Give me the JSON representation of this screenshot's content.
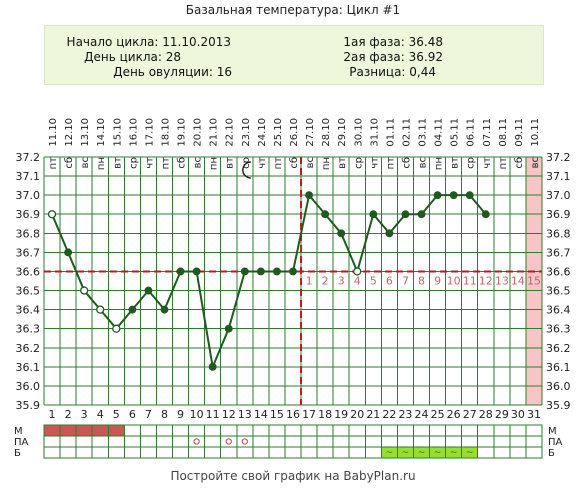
{
  "title": "Базальная температура: Цикл #1",
  "info": {
    "cycle_start": "Начало цикла: 11.10.2013",
    "cycle_day": "День цикла: 28",
    "ovulation_day": "День овуляции: 16",
    "phase1": "1ая фаза: 36.48",
    "phase2": "2ая фаза: 36.92",
    "difference": "Разница: 0,44"
  },
  "footer": "Постройте свой график на BabyPlan.ru",
  "moon_icon": "crescent-moon-icon",
  "colors": {
    "line": "#1f5a1f",
    "grid": "#2e7d2e",
    "cover_line": "#c01818",
    "ovulation_line": "#c01818",
    "highlight_column": "#f7c5c5",
    "menstruation": "#cc5555",
    "mucus_box": "#99dd33",
    "phase2_numbers": "#c06868"
  },
  "chart_data": {
    "type": "line",
    "title": "Базальная температура: Цикл #1",
    "ylim": [
      35.9,
      37.2
    ],
    "yticks": [
      "37.2",
      "37.1",
      "37.0",
      "36.9",
      "36.8",
      "36.7",
      "36.6",
      "36.5",
      "36.4",
      "36.3",
      "36.2",
      "36.1",
      "36.0",
      "35.9"
    ],
    "days": [
      "1",
      "2",
      "3",
      "4",
      "5",
      "6",
      "7",
      "8",
      "9",
      "10",
      "11",
      "12",
      "13",
      "14",
      "15",
      "16",
      "17",
      "18",
      "19",
      "20",
      "21",
      "22",
      "23",
      "24",
      "25",
      "26",
      "27",
      "28",
      "29",
      "30",
      "31"
    ],
    "weekdays": [
      "пт",
      "сб",
      "вс",
      "пн",
      "вт",
      "ср",
      "чт",
      "пт",
      "сб",
      "вс",
      "пн",
      "вт",
      "ср",
      "чт",
      "пт",
      "сб",
      "вс",
      "пн",
      "вт",
      "ср",
      "чт",
      "пт",
      "сб",
      "вс",
      "пн",
      "вт",
      "ср",
      "чт",
      "пт",
      "сб",
      "вс"
    ],
    "dates": [
      "11.10",
      "12.10",
      "13.10",
      "14.10",
      "15.10",
      "16.10",
      "17.10",
      "18.10",
      "19.10",
      "20.10",
      "21.10",
      "22.10",
      "23.10",
      "24.10",
      "25.10",
      "26.10",
      "27.10",
      "28.10",
      "29.10",
      "30.10",
      "31.10",
      "01.11",
      "02.11",
      "03.11",
      "04.11",
      "05.11",
      "06.11",
      "07.11",
      "08.11",
      "09.11",
      "10.11"
    ],
    "series": [
      {
        "values": [
          36.9,
          36.7,
          36.5,
          36.4,
          36.3,
          36.4,
          36.5,
          36.4,
          36.6,
          36.6,
          36.1,
          36.3,
          36.6,
          36.6,
          36.6,
          36.6,
          37.0,
          36.9,
          36.8,
          36.6,
          36.9,
          36.8,
          36.9,
          36.9,
          37.0,
          37.0,
          37.0,
          36.9,
          null,
          null,
          null
        ],
        "hollow": [
          true,
          false,
          true,
          true,
          true,
          false,
          false,
          false,
          false,
          false,
          false,
          false,
          false,
          false,
          false,
          false,
          false,
          false,
          false,
          true,
          false,
          false,
          false,
          false,
          false,
          false,
          false,
          false,
          false,
          false,
          false
        ]
      }
    ],
    "cover_line": 36.6,
    "ovulation_day": 16,
    "moon_day": 13,
    "highlight_day": 31,
    "phase2_numbers": [
      "1",
      "2",
      "3",
      "4",
      "5",
      "6",
      "7",
      "8",
      "9",
      "10",
      "11",
      "12",
      "13",
      "14",
      "15"
    ],
    "rows": {
      "labels": [
        "М",
        "ПА",
        "Б"
      ],
      "menstruation_days": [
        1,
        2,
        3,
        4,
        5
      ],
      "pa_circle_days": [
        10,
        12,
        13
      ],
      "mucus_days": [
        22,
        23,
        24,
        25,
        26,
        27
      ],
      "mucus_mark": "~"
    },
    "grid": true
  }
}
